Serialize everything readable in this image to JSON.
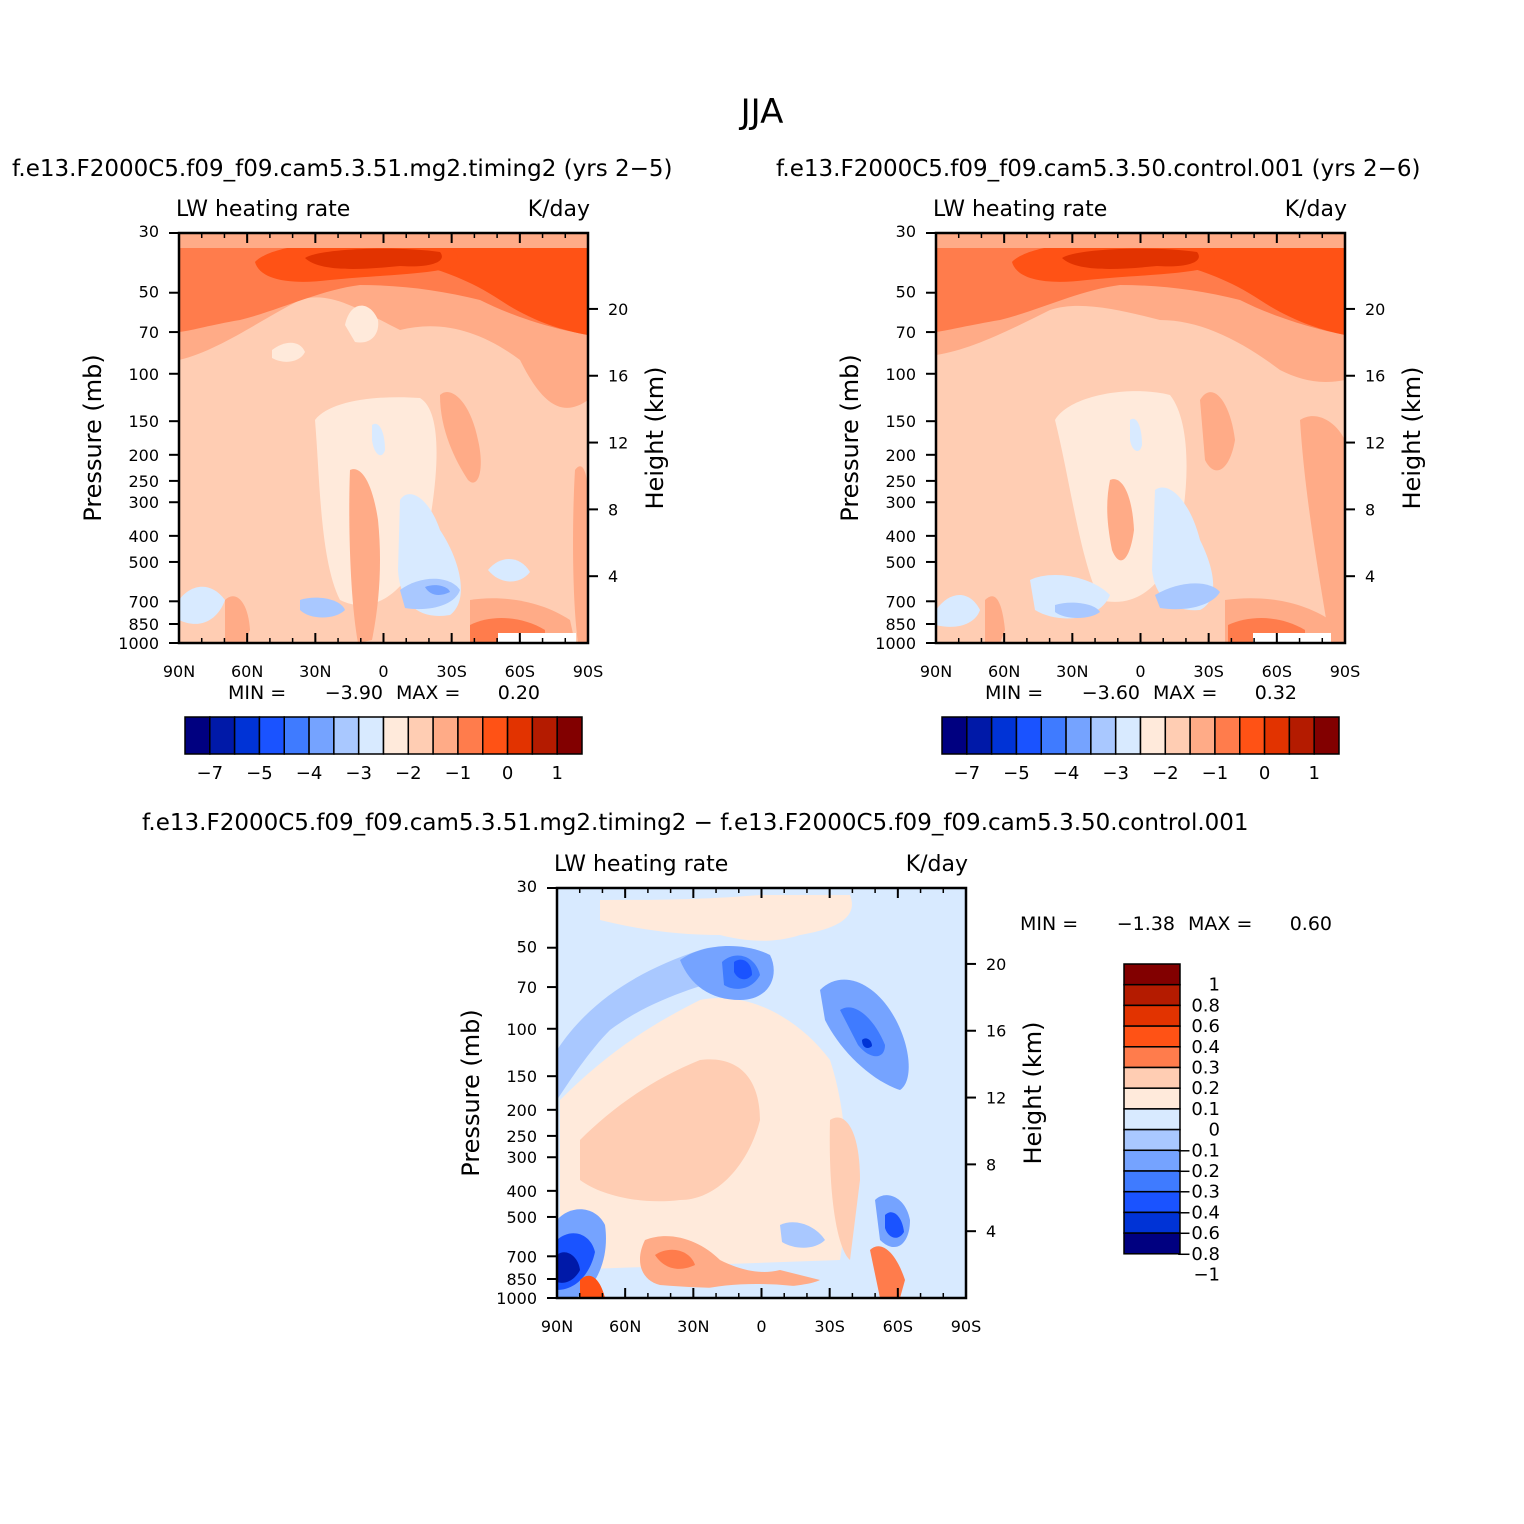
{
  "figure": {
    "title": "JJA",
    "panels": [
      {
        "case_title": "f.e13.F2000C5.f09_f09.cam5.3.51.mg2.timing2 (yrs 2−5)",
        "variable": "LW heating rate",
        "units": "K/day",
        "stats": {
          "min_label": "MIN =",
          "min": "−3.90",
          "max_label": "MAX =",
          "max": "0.20"
        }
      },
      {
        "case_title": "f.e13.F2000C5.f09_f09.cam5.3.50.control.001 (yrs 2−6)",
        "variable": "LW heating rate",
        "units": "K/day",
        "stats": {
          "min_label": "MIN =",
          "min": "−3.60",
          "max_label": "MAX =",
          "max": "0.32"
        }
      },
      {
        "case_title": "f.e13.F2000C5.f09_f09.cam5.3.51.mg2.timing2 − f.e13.F2000C5.f09_f09.cam5.3.50.control.001",
        "variable": "LW heating rate",
        "units": "K/day",
        "stats": {
          "min_label": "MIN =",
          "min": "−1.38",
          "max_label": "MAX =",
          "max": "0.60"
        }
      }
    ]
  },
  "chart_data": [
    {
      "type": "heatmap",
      "title": "LW heating rate",
      "units": "K/day",
      "xlabel": "",
      "ylabel": "Pressure (mb)",
      "y2label": "Height (km)",
      "x_ticks": [
        "90N",
        "60N",
        "30N",
        "0",
        "30S",
        "60S",
        "90S"
      ],
      "y_ticks": [
        30,
        50,
        70,
        100,
        150,
        200,
        250,
        300,
        400,
        500,
        700,
        850,
        1000
      ],
      "y2_ticks": [
        20,
        16,
        12,
        8,
        4
      ],
      "ylim": [
        30,
        1000
      ],
      "min": -3.9,
      "max": 0.2,
      "colorbar": {
        "levels": [
          "−7",
          "−5",
          "−4",
          "−3",
          "−2",
          "−1",
          "0",
          "1"
        ],
        "colors": [
          "#000080",
          "#0019a8",
          "#0033d6",
          "#1a53ff",
          "#3f7bff",
          "#75a3ff",
          "#a9c8ff",
          "#d8eaff",
          "#ffeadb",
          "#ffcdb3",
          "#ffab87",
          "#ff7c4c",
          "#ff5215",
          "#e23300",
          "#b41b00",
          "#820000"
        ]
      }
    },
    {
      "type": "heatmap",
      "title": "LW heating rate",
      "units": "K/day",
      "xlabel": "",
      "ylabel": "Pressure (mb)",
      "y2label": "Height (km)",
      "x_ticks": [
        "90N",
        "60N",
        "30N",
        "0",
        "30S",
        "60S",
        "90S"
      ],
      "y_ticks": [
        30,
        50,
        70,
        100,
        150,
        200,
        250,
        300,
        400,
        500,
        700,
        850,
        1000
      ],
      "y2_ticks": [
        20,
        16,
        12,
        8,
        4
      ],
      "ylim": [
        30,
        1000
      ],
      "min": -3.6,
      "max": 0.32,
      "colorbar": {
        "levels": [
          "−7",
          "−5",
          "−4",
          "−3",
          "−2",
          "−1",
          "0",
          "1"
        ],
        "colors": [
          "#000080",
          "#0019a8",
          "#0033d6",
          "#1a53ff",
          "#3f7bff",
          "#75a3ff",
          "#a9c8ff",
          "#d8eaff",
          "#ffeadb",
          "#ffcdb3",
          "#ffab87",
          "#ff7c4c",
          "#ff5215",
          "#e23300",
          "#b41b00",
          "#820000"
        ]
      }
    },
    {
      "type": "heatmap",
      "title": "LW heating rate",
      "units": "K/day",
      "xlabel": "",
      "ylabel": "Pressure (mb)",
      "y2label": "Height (km)",
      "x_ticks": [
        "90N",
        "60N",
        "30N",
        "0",
        "30S",
        "60S",
        "90S"
      ],
      "y_ticks": [
        30,
        50,
        70,
        100,
        150,
        200,
        250,
        300,
        400,
        500,
        700,
        850,
        1000
      ],
      "y2_ticks": [
        20,
        16,
        12,
        8,
        4
      ],
      "ylim": [
        30,
        1000
      ],
      "min": -1.38,
      "max": 0.6,
      "colorbar": {
        "levels": [
          "1",
          "0.8",
          "0.6",
          "0.4",
          "0.3",
          "0.2",
          "0.1",
          "0",
          "−0.1",
          "−0.2",
          "−0.3",
          "−0.4",
          "−0.6",
          "−0.8",
          "−1"
        ],
        "colors": [
          "#820000",
          "#b41b00",
          "#e23300",
          "#ff5215",
          "#ff7c4c",
          "#ffcdb3",
          "#ffeadb",
          "#d8eaff",
          "#a9c8ff",
          "#75a3ff",
          "#3f7bff",
          "#1a53ff",
          "#0033d6",
          "#000080"
        ]
      }
    }
  ]
}
